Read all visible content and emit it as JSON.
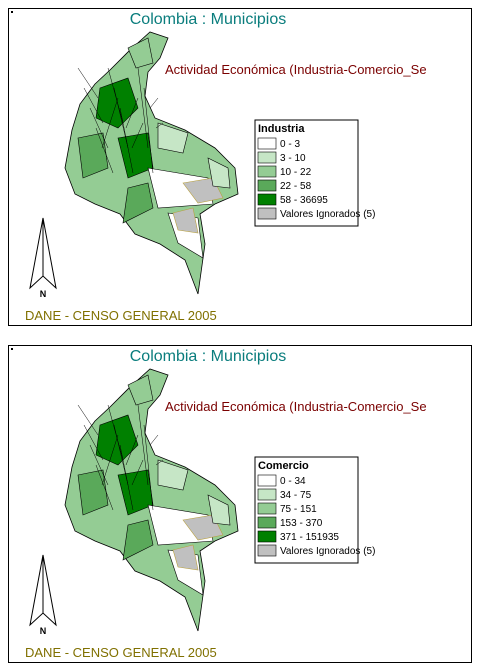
{
  "panels": [
    {
      "title": "Colombia : Municipios",
      "subtitle": "Actividad Económica (Industria-Comercio_Se",
      "legend": {
        "title": "Industria",
        "items": [
          {
            "label": "0 -    3",
            "color": "#ffffff"
          },
          {
            "label": "3 -   10",
            "color": "#c6e6c6"
          },
          {
            "label": "10 -   22",
            "color": "#94cc94"
          },
          {
            "label": "22 -   58",
            "color": "#5aa95a"
          },
          {
            "label": "58 - 36695",
            "color": "#008000"
          },
          {
            "label": "Valores Ignorados (5)",
            "color": "#c0c0c0"
          }
        ]
      },
      "north": "N",
      "footer": "DANE - CENSO GENERAL 2005"
    },
    {
      "title": "Colombia : Municipios",
      "subtitle": "Actividad Económica (Industria-Comercio_Se",
      "legend": {
        "title": "Comercio",
        "items": [
          {
            "label": "0 -   34",
            "color": "#ffffff"
          },
          {
            "label": "34 -   75",
            "color": "#c6e6c6"
          },
          {
            "label": "75 -  151",
            "color": "#94cc94"
          },
          {
            "label": "153 -  370",
            "color": "#5aa95a"
          },
          {
            "label": "371 - 151935",
            "color": "#008000"
          },
          {
            "label": "Valores Ignorados (5)",
            "color": "#c0c0c0"
          }
        ]
      },
      "north": "N",
      "footer": "DANE - CENSO GENERAL 2005"
    }
  ]
}
